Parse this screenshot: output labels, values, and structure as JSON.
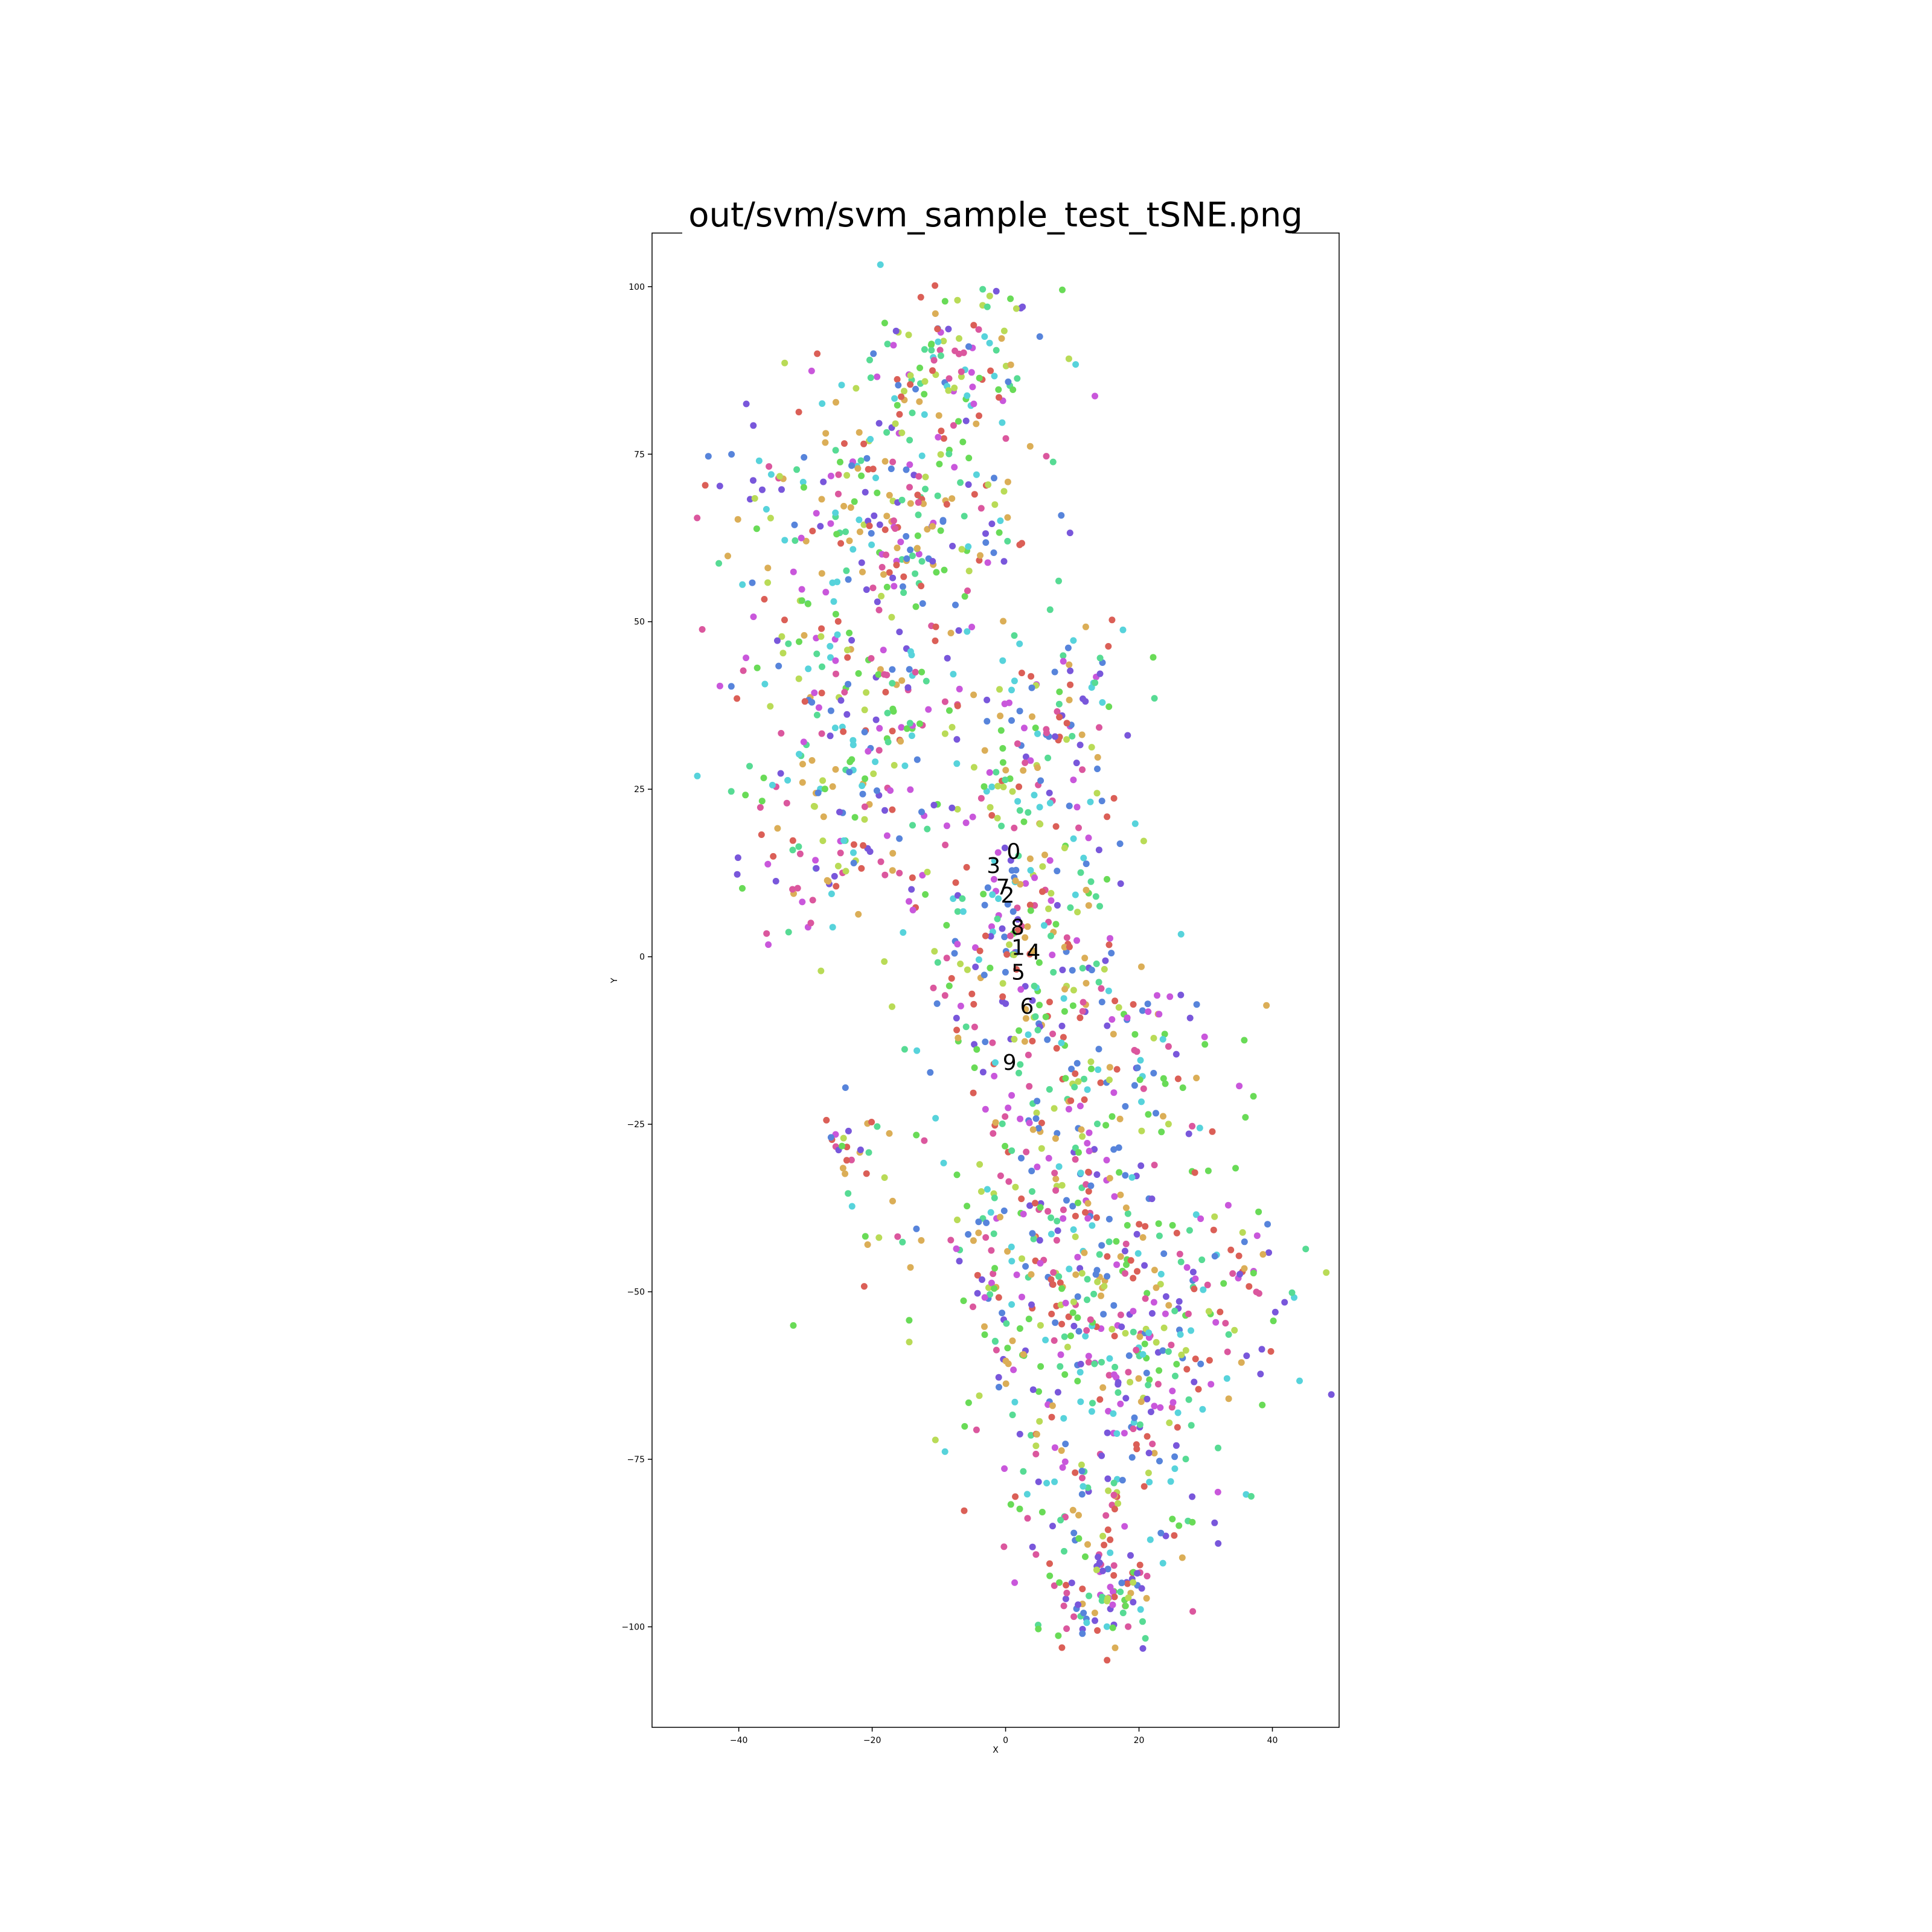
{
  "chart_data": {
    "type": "scatter",
    "title": "out/svm/svm_sample_test_tSNE.png",
    "xlabel": "X",
    "ylabel": "Y",
    "xlim": [
      -53,
      50
    ],
    "ylim": [
      -115,
      108
    ],
    "x_ticks": [
      -40,
      -20,
      0,
      20,
      40
    ],
    "y_ticks": [
      100,
      75,
      50,
      25,
      0,
      -25,
      -50,
      -75,
      -100
    ],
    "x_tick_labels": [
      "−40",
      "−20",
      "0",
      "20",
      "40"
    ],
    "y_tick_labels": [
      "100",
      "75",
      "50",
      "25",
      "0",
      "−25",
      "−50",
      "−75",
      "−100"
    ],
    "grid": false,
    "legend": "none",
    "palette": [
      "#db5f57",
      "#dbae57",
      "#b9db57",
      "#69db57",
      "#57db94",
      "#57d3db",
      "#5784db",
      "#7957db",
      "#c957db",
      "#db579e"
    ],
    "class_labels": [
      {
        "label": "0",
        "x": 1.2,
        "y": 15.5
      },
      {
        "label": "3",
        "x": -1.8,
        "y": 13.4
      },
      {
        "label": "7",
        "x": -0.4,
        "y": 10.2
      },
      {
        "label": "2",
        "x": 0.3,
        "y": 9.0
      },
      {
        "label": "8",
        "x": 1.8,
        "y": 4.2
      },
      {
        "label": "1",
        "x": 1.9,
        "y": 1.2
      },
      {
        "label": "4",
        "x": 4.2,
        "y": 0.5
      },
      {
        "label": "5",
        "x": 1.9,
        "y": -2.5
      },
      {
        "label": "6",
        "x": 3.2,
        "y": -7.6
      },
      {
        "label": "9",
        "x": 0.6,
        "y": -16.0
      }
    ],
    "clusters": [
      {
        "x": -8,
        "y": 88,
        "sx": 7,
        "sy": 6,
        "n": 110
      },
      {
        "x": -22,
        "y": 72,
        "sx": 11,
        "sy": 8,
        "n": 150
      },
      {
        "x": -12,
        "y": 62,
        "sx": 8,
        "sy": 6,
        "n": 80
      },
      {
        "x": -22,
        "y": 40,
        "sx": 10,
        "sy": 10,
        "n": 200
      },
      {
        "x": 8,
        "y": 38,
        "sx": 6,
        "sy": 6,
        "n": 70
      },
      {
        "x": -25,
        "y": 15,
        "sx": 8,
        "sy": 7,
        "n": 90
      },
      {
        "x": 4,
        "y": 18,
        "sx": 7,
        "sy": 10,
        "n": 110
      },
      {
        "x": 2,
        "y": 0,
        "sx": 8,
        "sy": 8,
        "n": 130
      },
      {
        "x": 10,
        "y": -15,
        "sx": 10,
        "sy": 8,
        "n": 140
      },
      {
        "x": 8,
        "y": -40,
        "sx": 12,
        "sy": 10,
        "n": 260
      },
      {
        "x": 18,
        "y": -58,
        "sx": 12,
        "sy": 8,
        "n": 200
      },
      {
        "x": 15,
        "y": -80,
        "sx": 8,
        "sy": 7,
        "n": 120
      },
      {
        "x": 14,
        "y": -96,
        "sx": 5,
        "sy": 4,
        "n": 80
      },
      {
        "x": 35,
        "y": -48,
        "sx": 4,
        "sy": 6,
        "n": 35
      },
      {
        "x": -22,
        "y": -28,
        "sx": 3,
        "sy": 4,
        "n": 25
      }
    ],
    "point_count": 2000
  }
}
